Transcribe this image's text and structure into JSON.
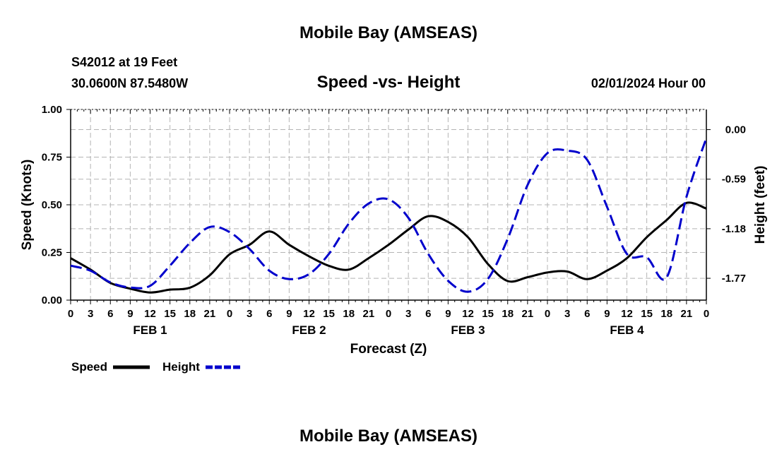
{
  "page": {
    "title_top": "Mobile Bay (AMSEAS)",
    "title_bottom": "Mobile Bay (AMSEAS)"
  },
  "header": {
    "station": "S42012 at 19 Feet",
    "coords": "30.0600N  87.5480W",
    "chart_title": "Speed -vs- Height",
    "datetime": "02/01/2024 Hour 00"
  },
  "chart_data": {
    "type": "line",
    "title": "Speed -vs- Height",
    "xlabel": "Forecast (Z)",
    "ylabel": "Speed (Knots)",
    "y2label": "Height (feet)",
    "xlim": [
      0,
      96
    ],
    "ylim": [
      0,
      1.0
    ],
    "y2lim": [
      -2.03,
      0.24
    ],
    "grid": true,
    "x_ticks": [
      0,
      3,
      6,
      9,
      12,
      15,
      18,
      21,
      24,
      27,
      30,
      33,
      36,
      39,
      42,
      45,
      48,
      51,
      54,
      57,
      60,
      63,
      66,
      69,
      72,
      75,
      78,
      81,
      84,
      87,
      90,
      93,
      96
    ],
    "x_tick_labels": [
      "0",
      "3",
      "6",
      "9",
      "12",
      "15",
      "18",
      "21",
      "0",
      "3",
      "6",
      "9",
      "12",
      "15",
      "18",
      "21",
      "0",
      "3",
      "6",
      "9",
      "12",
      "15",
      "18",
      "21",
      "0",
      "3",
      "6",
      "9",
      "12",
      "15",
      "18",
      "21",
      "0"
    ],
    "day_labels": [
      {
        "x": 12,
        "label": "FEB 1"
      },
      {
        "x": 36,
        "label": "FEB 2"
      },
      {
        "x": 60,
        "label": "FEB 3"
      },
      {
        "x": 84,
        "label": "FEB 4"
      }
    ],
    "y_ticks": [
      0,
      0.25,
      0.5,
      0.75,
      1.0
    ],
    "y_tick_labels": [
      "0.00",
      "0.25",
      "0.50",
      "0.75",
      "1.00"
    ],
    "y2_ticks": [
      0.0,
      -0.59,
      -1.18,
      -1.77
    ],
    "y2_tick_labels": [
      "0.00",
      "-0.59",
      "-1.18",
      "-1.77"
    ],
    "legend": [
      {
        "name": "Speed",
        "color": "#000000",
        "style": "solid"
      },
      {
        "name": "Height",
        "color": "#0000cc",
        "style": "dashed"
      }
    ],
    "legend_position": "bottom-left",
    "series": [
      {
        "name": "Speed",
        "axis": "left",
        "color": "#000000",
        "x": [
          0,
          3,
          6,
          9,
          12,
          15,
          18,
          21,
          24,
          27,
          30,
          33,
          36,
          39,
          42,
          45,
          48,
          51,
          54,
          57,
          60,
          63,
          66,
          69,
          72,
          75,
          78,
          81,
          84,
          87,
          90,
          93,
          96
        ],
        "values": [
          0.22,
          0.16,
          0.09,
          0.06,
          0.04,
          0.055,
          0.065,
          0.13,
          0.24,
          0.29,
          0.36,
          0.29,
          0.23,
          0.18,
          0.16,
          0.22,
          0.29,
          0.37,
          0.44,
          0.41,
          0.33,
          0.19,
          0.1,
          0.12,
          0.145,
          0.15,
          0.11,
          0.155,
          0.22,
          0.33,
          0.42,
          0.51,
          0.48
        ]
      },
      {
        "name": "Height",
        "axis": "right",
        "color": "#0000cc",
        "x": [
          0,
          3,
          6,
          9,
          12,
          15,
          18,
          21,
          24,
          27,
          30,
          33,
          36,
          39,
          42,
          45,
          48,
          51,
          54,
          57,
          60,
          63,
          66,
          69,
          72,
          75,
          78,
          81,
          84,
          87,
          90,
          93,
          96
        ],
        "values": [
          -1.62,
          -1.68,
          -1.82,
          -1.88,
          -1.86,
          -1.62,
          -1.35,
          -1.16,
          -1.22,
          -1.42,
          -1.68,
          -1.78,
          -1.72,
          -1.48,
          -1.12,
          -0.88,
          -0.83,
          -1.05,
          -1.48,
          -1.8,
          -1.93,
          -1.78,
          -1.3,
          -0.66,
          -0.28,
          -0.25,
          -0.36,
          -0.92,
          -1.48,
          -1.52,
          -1.76,
          -0.8,
          -0.1
        ]
      }
    ]
  }
}
